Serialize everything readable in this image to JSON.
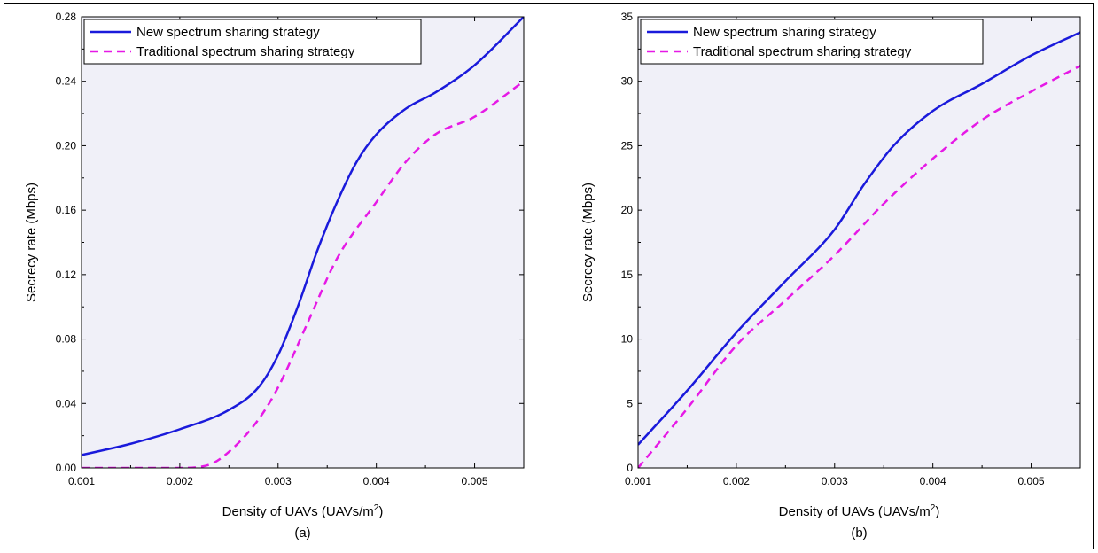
{
  "chart_data": [
    {
      "type": "line",
      "caption": "(a)",
      "xlabel": "Density of UAVs (UAVs/m",
      "xlabel_sup": "2",
      "xlabel_end": ")",
      "ylabel": "Secrecy rate (Mbps)",
      "xlim": [
        0.001,
        0.0055
      ],
      "ylim": [
        0,
        0.28
      ],
      "xticks": [
        0.001,
        0.002,
        0.003,
        0.004,
        0.005
      ],
      "xtick_labels": [
        "0.001",
        "0.002",
        "0.003",
        "0.004",
        "0.005"
      ],
      "yticks": [
        0,
        0.04,
        0.08,
        0.12,
        0.16,
        0.2,
        0.24,
        0.28
      ],
      "ytick_labels": [
        "0.00",
        "0.04",
        "0.08",
        "0.12",
        "0.16",
        "0.20",
        "0.24",
        "0.28"
      ],
      "legend_position": "top-left",
      "series": [
        {
          "name": "New spectrum sharing strategy",
          "color": "#1a1adb",
          "style": "solid",
          "x": [
            0.001,
            0.0015,
            0.002,
            0.0025,
            0.0028,
            0.003,
            0.0032,
            0.0034,
            0.0036,
            0.0038,
            0.004,
            0.0043,
            0.0046,
            0.005,
            0.0055
          ],
          "y": [
            0.008,
            0.015,
            0.024,
            0.036,
            0.05,
            0.07,
            0.1,
            0.135,
            0.165,
            0.19,
            0.207,
            0.223,
            0.233,
            0.25,
            0.28
          ]
        },
        {
          "name": "Traditional spectrum sharing strategy",
          "color": "#e619e6",
          "style": "dashed",
          "x": [
            0.001,
            0.0015,
            0.002,
            0.0023,
            0.0025,
            0.0028,
            0.003,
            0.0033,
            0.0036,
            0.004,
            0.0043,
            0.0046,
            0.005,
            0.0055
          ],
          "y": [
            0,
            0,
            0,
            0.002,
            0.01,
            0.03,
            0.05,
            0.09,
            0.13,
            0.165,
            0.19,
            0.207,
            0.218,
            0.24
          ]
        }
      ]
    },
    {
      "type": "line",
      "caption": "(b)",
      "xlabel": "Density of UAVs (UAVs/m",
      "xlabel_sup": "2",
      "xlabel_end": ")",
      "ylabel": "Secrecy rate (Mbps)",
      "xlim": [
        0.001,
        0.0055
      ],
      "ylim": [
        0,
        35
      ],
      "xticks": [
        0.001,
        0.002,
        0.003,
        0.004,
        0.005
      ],
      "xtick_labels": [
        "0.001",
        "0.002",
        "0.003",
        "0.004",
        "0.005"
      ],
      "yticks": [
        0,
        5,
        10,
        15,
        20,
        25,
        30,
        35
      ],
      "ytick_labels": [
        "0",
        "5",
        "10",
        "15",
        "20",
        "25",
        "30",
        "35"
      ],
      "legend_position": "top-left",
      "series": [
        {
          "name": "New spectrum sharing strategy",
          "color": "#1a1adb",
          "style": "solid",
          "x": [
            0.001,
            0.0015,
            0.002,
            0.0025,
            0.003,
            0.0033,
            0.0036,
            0.004,
            0.0045,
            0.005,
            0.0055
          ],
          "y": [
            1.8,
            6,
            10.5,
            14.5,
            18.5,
            22,
            25,
            27.7,
            29.8,
            32,
            33.8
          ]
        },
        {
          "name": "Traditional spectrum sharing strategy",
          "color": "#e619e6",
          "style": "dashed",
          "x": [
            0.001,
            0.0015,
            0.002,
            0.0025,
            0.003,
            0.0035,
            0.004,
            0.0045,
            0.005,
            0.0055
          ],
          "y": [
            0,
            4.6,
            9.5,
            13,
            16.5,
            20.5,
            24,
            27,
            29.2,
            31.2
          ]
        }
      ]
    }
  ]
}
